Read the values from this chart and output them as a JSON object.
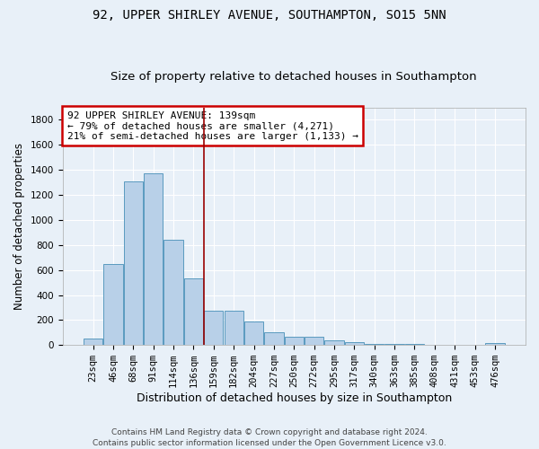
{
  "title1": "92, UPPER SHIRLEY AVENUE, SOUTHAMPTON, SO15 5NN",
  "title2": "Size of property relative to detached houses in Southampton",
  "xlabel": "Distribution of detached houses by size in Southampton",
  "ylabel": "Number of detached properties",
  "categories": [
    "23sqm",
    "46sqm",
    "68sqm",
    "91sqm",
    "114sqm",
    "136sqm",
    "159sqm",
    "182sqm",
    "204sqm",
    "227sqm",
    "250sqm",
    "272sqm",
    "295sqm",
    "317sqm",
    "340sqm",
    "363sqm",
    "385sqm",
    "408sqm",
    "431sqm",
    "453sqm",
    "476sqm"
  ],
  "values": [
    55,
    645,
    1310,
    1375,
    845,
    535,
    275,
    275,
    185,
    105,
    65,
    65,
    35,
    20,
    10,
    7,
    7,
    0,
    0,
    0,
    15
  ],
  "bar_color": "#b8d0e8",
  "bar_edge_color": "#5a9abf",
  "vline_x": 5.5,
  "vline_color": "#990000",
  "annotation_lines": [
    "92 UPPER SHIRLEY AVENUE: 139sqm",
    "← 79% of detached houses are smaller (4,271)",
    "21% of semi-detached houses are larger (1,133) →"
  ],
  "annotation_box_color": "white",
  "annotation_box_edge": "#cc0000",
  "ylim": [
    0,
    1900
  ],
  "background_color": "#e8f0f8",
  "grid_color": "white",
  "footer": "Contains HM Land Registry data © Crown copyright and database right 2024.\nContains public sector information licensed under the Open Government Licence v3.0.",
  "title1_fontsize": 10,
  "title2_fontsize": 9.5,
  "xlabel_fontsize": 9,
  "ylabel_fontsize": 8.5,
  "tick_fontsize": 7.5,
  "annotation_fontsize": 8,
  "footer_fontsize": 6.5
}
